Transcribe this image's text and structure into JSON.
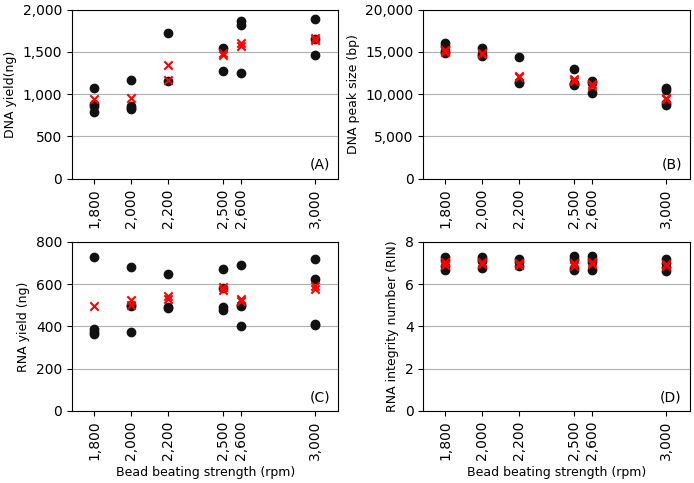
{
  "chart_data": [
    {
      "type": "scatter",
      "y_label": "DNA yield(ng)",
      "annotations": [
        "(A)"
      ],
      "grid": "y",
      "xlim": [
        1680,
        3130
      ],
      "xticks": [
        {
          "value": 1800,
          "label": "1,800"
        },
        {
          "value": 2000,
          "label": "2,000"
        },
        {
          "value": 2200,
          "label": "2,200"
        },
        {
          "value": 2500,
          "label": "2,500"
        },
        {
          "value": 2600,
          "label": "2,600"
        },
        {
          "value": 3000,
          "label": "3,000"
        }
      ],
      "ylim": [
        0,
        2000
      ],
      "yticks": [
        0,
        500,
        {
          "value": 1000,
          "label": "1,000"
        },
        {
          "value": 1500,
          "label": "1,500"
        },
        {
          "value": 2000,
          "label": "2,000"
        }
      ],
      "series": [
        {
          "color": "#111111",
          "marker": "circle",
          "x": [
            1800,
            1800,
            1800,
            1800,
            2000,
            2000,
            2000,
            2000,
            2200,
            2200,
            2500,
            2500,
            2600,
            2600,
            2600,
            3000,
            3000,
            3000
          ],
          "values": [
            1075,
            880,
            860,
            795,
            1165,
            860,
            840,
            830,
            1720,
            1160,
            1550,
            1280,
            1870,
            1820,
            1250,
            1890,
            1650,
            1460
          ]
        },
        {
          "color": "#ff0000",
          "marker": "x",
          "x": [
            1800,
            2000,
            2200,
            2200,
            2500,
            2500,
            2600,
            2600,
            3000,
            3000
          ],
          "values": [
            940,
            960,
            1350,
            1165,
            1490,
            1460,
            1600,
            1575,
            1660,
            1645
          ]
        }
      ]
    },
    {
      "type": "scatter",
      "y_label": "DNA peak size (bp)",
      "annotations": [
        "(B)"
      ],
      "grid": "y",
      "xlim": [
        1680,
        3130
      ],
      "xticks": [
        {
          "value": 1800,
          "label": "1,800"
        },
        {
          "value": 2000,
          "label": "2,000"
        },
        {
          "value": 2200,
          "label": "2,200"
        },
        {
          "value": 2500,
          "label": "2,500"
        },
        {
          "value": 2600,
          "label": "2,600"
        },
        {
          "value": 3000,
          "label": "3,000"
        }
      ],
      "ylim": [
        0,
        20000
      ],
      "yticks": [
        0,
        {
          "value": 5000,
          "label": "5,000"
        },
        {
          "value": 10000,
          "label": "10,000"
        },
        {
          "value": 15000,
          "label": "15,000"
        },
        {
          "value": 20000,
          "label": "20,000"
        }
      ],
      "series": [
        {
          "color": "#111111",
          "marker": "circle",
          "x": [
            1800,
            1800,
            1800,
            1800,
            2000,
            2000,
            2000,
            2200,
            2200,
            2200,
            2500,
            2500,
            2500,
            2500,
            2600,
            2600,
            2600,
            3000,
            3000,
            3000,
            3000
          ],
          "values": [
            16100,
            15700,
            15100,
            14900,
            15500,
            14700,
            14500,
            14350,
            11500,
            11300,
            13000,
            11350,
            11200,
            11050,
            11550,
            11300,
            10150,
            10700,
            10450,
            9000,
            8700
          ]
        },
        {
          "color": "#ff0000",
          "marker": "x",
          "x": [
            1800,
            1800,
            2000,
            2000,
            2200,
            2200,
            2500,
            2500,
            2600,
            2600,
            3000,
            3000
          ],
          "values": [
            15200,
            14950,
            14900,
            14750,
            12200,
            12000,
            11800,
            11600,
            11200,
            11000,
            9600,
            9450
          ]
        }
      ]
    },
    {
      "type": "scatter",
      "x_label": "Bead beating strength (rpm)",
      "y_label": "RNA yield (ng)",
      "annotations": [
        "(C)"
      ],
      "grid": "y",
      "xlim": [
        1680,
        3130
      ],
      "xticks": [
        {
          "value": 1800,
          "label": "1,800"
        },
        {
          "value": 2000,
          "label": "2,000"
        },
        {
          "value": 2200,
          "label": "2,200"
        },
        {
          "value": 2500,
          "label": "2,500"
        },
        {
          "value": 2600,
          "label": "2,600"
        },
        {
          "value": 3000,
          "label": "3,000"
        }
      ],
      "ylim": [
        0,
        800
      ],
      "yticks": [
        0,
        200,
        400,
        600,
        800
      ],
      "series": [
        {
          "color": "#111111",
          "marker": "circle",
          "x": [
            1800,
            1800,
            1800,
            1800,
            2000,
            2000,
            2000,
            2000,
            2200,
            2200,
            2200,
            2500,
            2500,
            2500,
            2500,
            2600,
            2600,
            2600,
            2600,
            3000,
            3000,
            3000,
            3000
          ],
          "values": [
            730,
            390,
            375,
            365,
            680,
            500,
            495,
            375,
            650,
            490,
            485,
            670,
            580,
            490,
            480,
            690,
            500,
            495,
            400,
            720,
            625,
            410,
            405
          ]
        },
        {
          "color": "#ff0000",
          "marker": "x",
          "x": [
            1800,
            2000,
            2000,
            2200,
            2200,
            2500,
            2500,
            2600,
            2600,
            3000,
            3000
          ],
          "values": [
            495,
            525,
            500,
            545,
            530,
            585,
            570,
            530,
            520,
            590,
            575
          ]
        }
      ]
    },
    {
      "type": "scatter",
      "x_label": "Bead beating strength (rpm)",
      "y_label": "RNA integrity number (RIN)",
      "annotations": [
        "(D)"
      ],
      "grid": "y",
      "xlim": [
        1680,
        3130
      ],
      "xticks": [
        {
          "value": 1800,
          "label": "1,800"
        },
        {
          "value": 2000,
          "label": "2,000"
        },
        {
          "value": 2200,
          "label": "2,200"
        },
        {
          "value": 2500,
          "label": "2,500"
        },
        {
          "value": 2600,
          "label": "2,600"
        },
        {
          "value": 3000,
          "label": "3,000"
        }
      ],
      "ylim": [
        0,
        8
      ],
      "yticks": [
        0,
        2,
        4,
        6,
        8
      ],
      "series": [
        {
          "color": "#111111",
          "marker": "circle",
          "x": [
            1800,
            1800,
            1800,
            1800,
            2000,
            2000,
            2000,
            2000,
            2200,
            2200,
            2200,
            2500,
            2500,
            2500,
            2500,
            2600,
            2600,
            2600,
            2600,
            3000,
            3000,
            3000,
            3000
          ],
          "values": [
            7.3,
            7.15,
            6.85,
            6.65,
            7.3,
            7.2,
            7.1,
            6.75,
            7.2,
            7.05,
            6.85,
            7.35,
            7.2,
            6.75,
            6.65,
            7.35,
            7.2,
            7.05,
            6.65,
            7.2,
            7.0,
            6.8,
            6.6
          ]
        },
        {
          "color": "#ff0000",
          "marker": "x",
          "x": [
            1800,
            1800,
            2000,
            2000,
            2200,
            2200,
            2500,
            2500,
            2600,
            2600,
            3000,
            3000
          ],
          "values": [
            7.05,
            6.9,
            7.05,
            6.95,
            7.0,
            6.9,
            7.0,
            6.85,
            7.05,
            6.95,
            6.95,
            6.85
          ]
        }
      ]
    }
  ]
}
